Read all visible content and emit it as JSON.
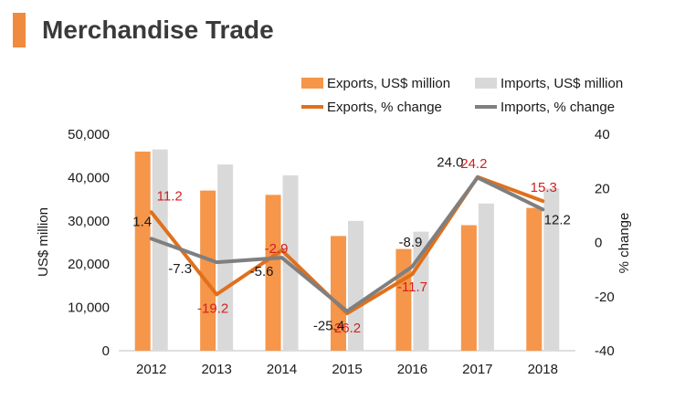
{
  "header": {
    "title": "Merchandise Trade"
  },
  "colors": {
    "title_accent": "#f08a3e",
    "exports_bar": "#f5964a",
    "imports_bar": "#d9d9d9",
    "exports_line": "#e0701c",
    "imports_line": "#7f7f7f",
    "exports_label": "#d42020",
    "imports_label": "#1a1a1a"
  },
  "chart_data": {
    "type": "bar",
    "categories": [
      "2012",
      "2013",
      "2014",
      "2015",
      "2016",
      "2017",
      "2018"
    ],
    "series": [
      {
        "name": "Exports, US$ million",
        "kind": "bar",
        "axis": "left",
        "values": [
          46000,
          37000,
          36000,
          26500,
          23500,
          29000,
          33000
        ]
      },
      {
        "name": "Imports, US$ million",
        "kind": "bar",
        "axis": "left",
        "values": [
          46500,
          43000,
          40500,
          30000,
          27500,
          34000,
          37500
        ]
      },
      {
        "name": "Exports, % change",
        "kind": "line",
        "axis": "right",
        "values": [
          11.2,
          -19.2,
          -2.9,
          -26.2,
          -11.7,
          24.2,
          15.3
        ],
        "labels": [
          "11.2",
          "-19.2",
          "-2.9",
          "-26.2",
          "-11.7",
          "24.2",
          "15.3"
        ]
      },
      {
        "name": "Imports, % change",
        "kind": "line",
        "axis": "right",
        "values": [
          1.4,
          -7.3,
          -5.6,
          -25.4,
          -8.9,
          24.0,
          12.2
        ],
        "labels": [
          "1.4",
          "-7.3",
          "-5.6",
          "-25.4",
          "-8.9",
          "24.0",
          "12.2"
        ]
      }
    ],
    "ylabel": "US$ million",
    "y2label": "% change",
    "ylim": [
      0,
      50000
    ],
    "y2lim": [
      -40,
      40
    ],
    "yticks": [
      "0",
      "10,000",
      "20,000",
      "30,000",
      "40,000",
      "50,000"
    ],
    "y2ticks": [
      "-40",
      "-20",
      "0",
      "20",
      "40"
    ],
    "grid": false,
    "legend_position": "top-right"
  }
}
